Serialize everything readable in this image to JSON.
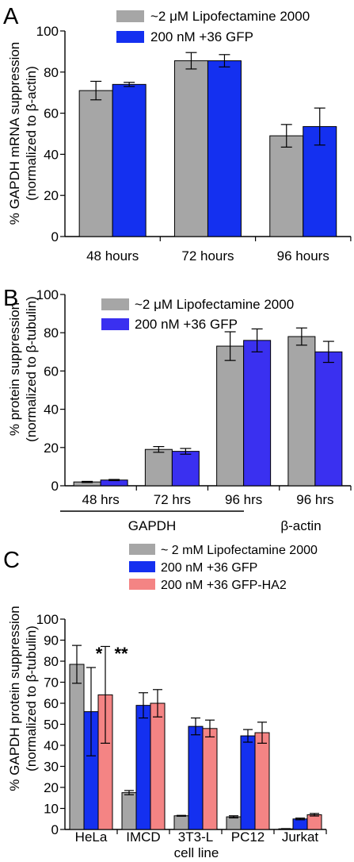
{
  "colors": {
    "gray": "#a6a6a6",
    "blue_a": "#1430f0",
    "blue_b": "#3a30f0",
    "salmon": "#f48484"
  },
  "chart_data": [
    {
      "panel_label": "A",
      "type": "bar",
      "ylabel_line1": "% GAPDH mRNA suppression",
      "ylabel_line2": "(normalized to β-actin)",
      "ylim": [
        0,
        100
      ],
      "yticks": [
        "0",
        "20",
        "40",
        "60",
        "80",
        "100"
      ],
      "categories": [
        "48 hours",
        "72 hours",
        "96 hours"
      ],
      "legend_position": "top-right",
      "series": [
        {
          "name": "~2 μM Lipofectamine 2000",
          "color": "#a6a6a6",
          "values": [
            71,
            85.5,
            49
          ],
          "errors": [
            4.5,
            4,
            5.5
          ]
        },
        {
          "name": "200 nM +36 GFP",
          "color": "#1430f0",
          "values": [
            74,
            85.5,
            53.5
          ],
          "errors": [
            1,
            3,
            9
          ]
        }
      ]
    },
    {
      "panel_label": "B",
      "type": "bar",
      "ylabel_line1": "% protein suppression",
      "ylabel_line2": "(normalized to β-tubulin)",
      "ylim": [
        0,
        100
      ],
      "yticks": [
        "0",
        "20",
        "40",
        "60",
        "80",
        "100"
      ],
      "categories": [
        "48 hrs",
        "72 hrs",
        "96 hrs",
        "96 hrs"
      ],
      "group_labels": [
        "GAPDH",
        "β-actin"
      ],
      "legend_position": "top-left",
      "series": [
        {
          "name": "~2 μM Lipofectamine 2000",
          "color": "#a6a6a6",
          "values": [
            2,
            19,
            73,
            78
          ],
          "errors": [
            0.3,
            1.5,
            7.5,
            4.5
          ]
        },
        {
          "name": "200 nM +36 GFP",
          "color": "#3a30f0",
          "values": [
            3,
            18,
            76,
            70
          ],
          "errors": [
            0.3,
            1.5,
            6,
            5.5
          ]
        }
      ]
    },
    {
      "panel_label": "C",
      "type": "bar",
      "ylabel_line1": "% GAPDH protein suppression",
      "ylabel_line2": "(normalized to β-tubulin)",
      "xlabel": "cell line",
      "ylim": [
        0,
        100
      ],
      "yticks": [
        "0",
        "10",
        "20",
        "30",
        "40",
        "50",
        "60",
        "70",
        "80",
        "90",
        "100"
      ],
      "categories": [
        "HeLa",
        "IMCD",
        "3T3-L",
        "PC12",
        "Jurkat"
      ],
      "legend_position": "top-right",
      "annotations": [
        "*",
        "**"
      ],
      "series": [
        {
          "name": "~ 2 mM Lipofectamine 2000",
          "color": "#a6a6a6",
          "values": [
            78.5,
            17.5,
            6.5,
            6,
            0.3
          ],
          "errors": [
            9,
            1,
            0.2,
            0.5,
            0.1
          ]
        },
        {
          "name": "200 nM +36 GFP",
          "color": "#1430f0",
          "values": [
            56,
            59,
            49,
            44.5,
            5
          ],
          "errors": [
            21,
            6,
            4,
            3,
            0.4
          ]
        },
        {
          "name": "200 nM +36 GFP-HA2",
          "color": "#f48484",
          "values": [
            64,
            60,
            48,
            46,
            7
          ],
          "errors": [
            23,
            6.5,
            4,
            5,
            0.6
          ]
        }
      ]
    }
  ]
}
